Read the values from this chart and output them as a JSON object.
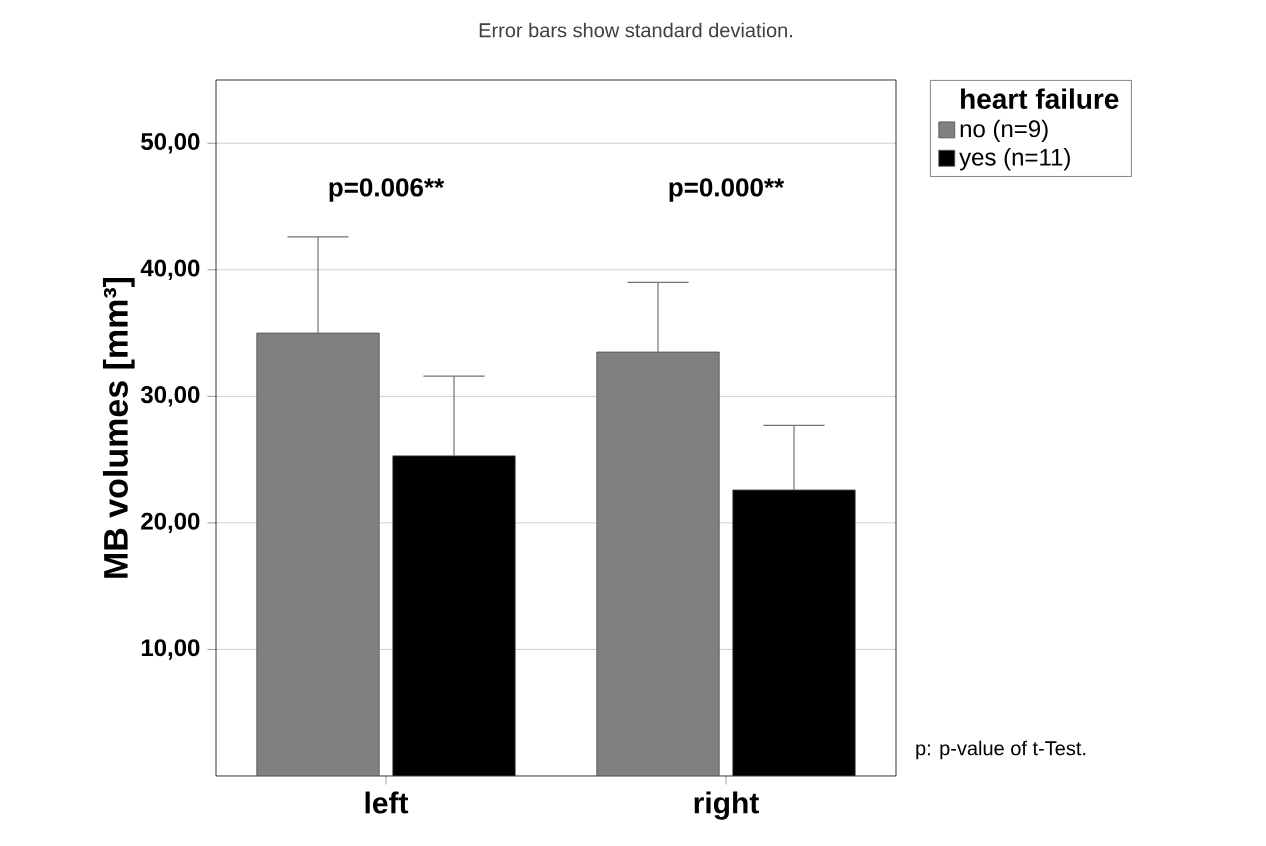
{
  "chart_data": {
    "type": "bar",
    "title": "Error bars show standard deviation.",
    "ylabel": "MB volumes [mm³]",
    "legend_title": "heart failure",
    "categories": [
      "left",
      "right"
    ],
    "series": [
      {
        "name": "no (n=9)",
        "color": "#808080",
        "values": [
          35.0,
          33.5
        ],
        "errors": [
          [
            35.0,
            42.6
          ],
          [
            33.5,
            39.0
          ]
        ]
      },
      {
        "name": "yes (n=11)",
        "color": "#000000",
        "values": [
          25.3,
          22.6
        ],
        "errors": [
          [
            25.3,
            31.6
          ],
          [
            22.6,
            27.7
          ]
        ]
      }
    ],
    "ylim": [
      0,
      55
    ],
    "yticks": [
      {
        "value": 10,
        "label": "10,00"
      },
      {
        "value": 20,
        "label": "20,00"
      },
      {
        "value": 30,
        "label": "30,00"
      },
      {
        "value": 40,
        "label": "40,00"
      },
      {
        "value": 50,
        "label": "50,00"
      }
    ],
    "grid": "y",
    "legend": "top right",
    "annotations": [
      "p=0.006**",
      "p=0.000**",
      "p: p-value of t-Test."
    ]
  }
}
